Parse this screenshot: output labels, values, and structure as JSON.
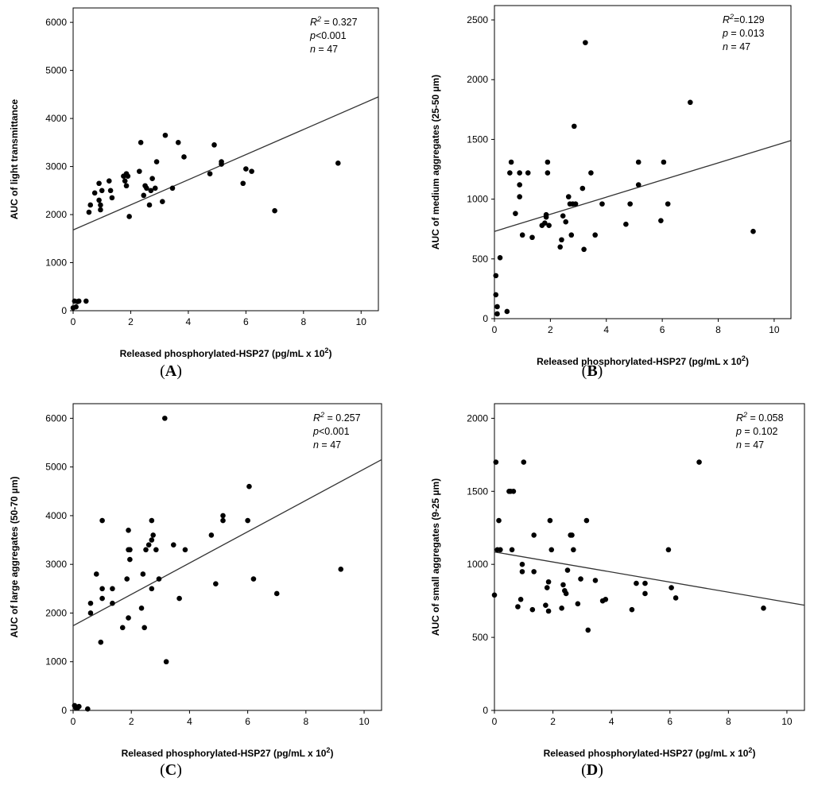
{
  "chart_data": [
    {
      "type": "scatter",
      "panel_label": "A",
      "xlabel": "Released phosphorylated-HSP27 (pg/mL x 10",
      "xlabel_sup": "2",
      "xlabel_suffix": ")",
      "ylabel": "AUC of light transmittance",
      "xlim": [
        0,
        10.6
      ],
      "ylim": [
        0,
        6300
      ],
      "xticks": [
        0,
        2,
        4,
        6,
        8,
        10
      ],
      "yticks": [
        0,
        1000,
        2000,
        3000,
        4000,
        5000,
        6000
      ],
      "stats": {
        "r2_label": "R",
        "r2_sup": "2",
        "r2_value": " = 0.327",
        "p_label": "p",
        "p_value": "<0.001",
        "n_label": "n",
        "n_value": " = 47"
      },
      "regression": {
        "x": [
          0,
          10.6
        ],
        "y": [
          1680,
          4450
        ]
      },
      "points": {
        "x": [
          0.0,
          0.05,
          0.1,
          0.15,
          0.2,
          0.45,
          0.55,
          0.6,
          0.75,
          0.9,
          0.9,
          0.95,
          0.95,
          1.0,
          1.25,
          1.3,
          1.35,
          1.75,
          1.8,
          1.85,
          1.85,
          1.9,
          1.95,
          2.3,
          2.35,
          2.45,
          2.5,
          2.55,
          2.65,
          2.7,
          2.75,
          2.85,
          2.9,
          3.1,
          3.2,
          3.45,
          3.65,
          3.85,
          4.75,
          4.9,
          5.15,
          5.15,
          5.9,
          6.0,
          6.2,
          7.0,
          9.2
        ],
        "y": [
          60,
          200,
          80,
          190,
          200,
          200,
          2050,
          2200,
          2450,
          2650,
          2300,
          2200,
          2100,
          2500,
          2700,
          2500,
          2350,
          2800,
          2700,
          2850,
          2600,
          2800,
          1960,
          2900,
          3500,
          2400,
          2600,
          2550,
          2200,
          2500,
          2750,
          2550,
          3100,
          2270,
          3650,
          2550,
          3500,
          3200,
          2850,
          3450,
          3100,
          3050,
          2650,
          2950,
          2900,
          2080,
          3070
        ]
      }
    },
    {
      "type": "scatter",
      "panel_label": "B",
      "xlabel": "Released phosphorylated-HSP27 (pg/mL x 10",
      "xlabel_sup": "2",
      "xlabel_suffix": ")",
      "ylabel": "AUC of medium aggregates (25-50 µm)",
      "xlim": [
        0,
        10.6
      ],
      "ylim": [
        0,
        2620
      ],
      "xticks": [
        0,
        2,
        4,
        6,
        8,
        10
      ],
      "yticks": [
        0,
        500,
        1000,
        1500,
        2000,
        2500
      ],
      "stats": {
        "r2_label": "R",
        "r2_sup": "2",
        "r2_value": "=0.129",
        "p_label": "p",
        "p_value": " = 0.013",
        "n_label": "n",
        "n_value": " = 47"
      },
      "regression": {
        "x": [
          0,
          10.6
        ],
        "y": [
          730,
          1490
        ]
      },
      "points": {
        "x": [
          0.05,
          0.05,
          0.1,
          0.2,
          0.45,
          0.55,
          0.6,
          0.75,
          0.9,
          0.9,
          0.9,
          1.0,
          1.2,
          1.35,
          1.7,
          1.8,
          1.85,
          1.85,
          1.9,
          1.9,
          1.95,
          2.35,
          2.4,
          2.45,
          2.55,
          2.65,
          2.7,
          2.75,
          2.85,
          2.9,
          3.2,
          3.25,
          3.45,
          3.6,
          3.85,
          4.7,
          4.85,
          5.15,
          5.15,
          5.95,
          6.05,
          6.2,
          7.0,
          9.25,
          2.8,
          3.15,
          0.1
        ],
        "y": [
          360,
          200,
          40,
          510,
          60,
          1220,
          1310,
          880,
          1120,
          1020,
          1220,
          700,
          1220,
          680,
          780,
          800,
          870,
          850,
          1220,
          1310,
          780,
          600,
          660,
          860,
          810,
          1020,
          960,
          700,
          1610,
          960,
          580,
          2310,
          1220,
          700,
          960,
          790,
          960,
          1120,
          1310,
          820,
          1310,
          960,
          1810,
          730,
          960,
          1090,
          100
        ]
      }
    },
    {
      "type": "scatter",
      "panel_label": "C",
      "xlabel": "Released phosphorylated-HSP27 (pg/mL x 10",
      "xlabel_sup": "2",
      "xlabel_suffix": ")",
      "ylabel": "AUC of large aggregates (50-70 µm)",
      "xlim": [
        0,
        10.6
      ],
      "ylim": [
        0,
        6300
      ],
      "xticks": [
        0,
        2,
        4,
        6,
        8,
        10
      ],
      "yticks": [
        0,
        1000,
        2000,
        3000,
        4000,
        5000,
        6000
      ],
      "stats": {
        "r2_label": "R",
        "r2_sup": "2",
        "r2_value": " = 0.257",
        "p_label": "p",
        "p_value": "<0.001",
        "n_label": "n",
        "n_value": " = 47"
      },
      "regression": {
        "x": [
          0,
          10.6
        ],
        "y": [
          1740,
          5150
        ]
      },
      "points": {
        "x": [
          0.05,
          0.1,
          0.2,
          0.5,
          0.6,
          0.6,
          0.8,
          0.95,
          1.0,
          1.0,
          1.0,
          1.35,
          1.35,
          1.7,
          1.85,
          1.9,
          1.9,
          1.9,
          1.95,
          1.95,
          2.35,
          2.4,
          2.45,
          2.5,
          2.6,
          2.7,
          2.7,
          2.75,
          2.85,
          2.95,
          3.15,
          3.2,
          3.45,
          3.65,
          3.85,
          4.75,
          4.9,
          5.15,
          5.15,
          6.0,
          6.05,
          6.2,
          7.0,
          9.2,
          2.7,
          0.15,
          1.95
        ],
        "y": [
          100,
          50,
          80,
          30,
          2200,
          2000,
          2800,
          1400,
          2300,
          2500,
          3900,
          2500,
          2200,
          1700,
          2700,
          3700,
          1900,
          3300,
          3300,
          3100,
          2100,
          2800,
          1700,
          3300,
          3400,
          3900,
          2500,
          3600,
          3300,
          2700,
          6000,
          1000,
          3400,
          2300,
          3300,
          3600,
          2600,
          4000,
          3900,
          3900,
          4600,
          2700,
          2400,
          2900,
          3500,
          50,
          3300
        ]
      }
    },
    {
      "type": "scatter",
      "panel_label": "D",
      "xlabel": "Released phosphorylated-HSP27 (pg/mL x 10",
      "xlabel_sup": "2",
      "xlabel_suffix": ")",
      "ylabel": "AUC of small aggregates (9-25 µm)",
      "xlim": [
        0,
        10.6
      ],
      "ylim": [
        0,
        2100
      ],
      "xticks": [
        0,
        2,
        4,
        6,
        8,
        10
      ],
      "yticks": [
        0,
        500,
        1000,
        1500,
        2000
      ],
      "stats": {
        "r2_label": "R",
        "r2_sup": "2",
        "r2_value": " = 0.058",
        "p_label": "p",
        "p_value": " = 0.102",
        "n_label": "n",
        "n_value": " = 47"
      },
      "regression": {
        "x": [
          0,
          10.6
        ],
        "y": [
          1085,
          720
        ]
      },
      "points": {
        "x": [
          0.0,
          0.05,
          0.1,
          0.15,
          0.2,
          0.5,
          0.55,
          0.6,
          0.65,
          0.8,
          0.9,
          0.95,
          0.95,
          1.0,
          1.3,
          1.35,
          1.35,
          1.75,
          1.8,
          1.85,
          1.85,
          1.9,
          1.95,
          2.3,
          2.35,
          2.45,
          2.5,
          2.6,
          2.65,
          2.7,
          2.85,
          2.95,
          3.15,
          3.2,
          3.45,
          3.7,
          3.8,
          4.7,
          4.85,
          5.15,
          5.15,
          5.95,
          6.05,
          6.2,
          7.0,
          9.2,
          2.4
        ],
        "y": [
          790,
          1700,
          1100,
          1300,
          1100,
          1500,
          1500,
          1100,
          1500,
          710,
          760,
          950,
          1000,
          1700,
          690,
          950,
          1200,
          720,
          840,
          880,
          680,
          1300,
          1100,
          700,
          860,
          800,
          960,
          1200,
          1200,
          1100,
          730,
          900,
          1300,
          550,
          890,
          750,
          760,
          690,
          870,
          870,
          800,
          1100,
          840,
          770,
          1700,
          700,
          820
        ]
      }
    }
  ]
}
